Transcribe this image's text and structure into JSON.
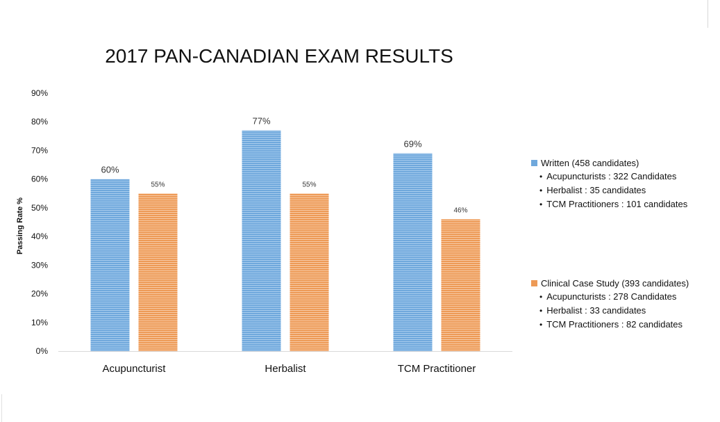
{
  "chart_data": {
    "type": "bar",
    "title": "2017 PAN-CANADIAN EXAM RESULTS",
    "ylabel": "Passing Rate %",
    "xlabel": "",
    "categories": [
      "Acupuncturist",
      "Herbalist",
      "TCM Practitioner"
    ],
    "y_ticks": [
      "0%",
      "10%",
      "20%",
      "30%",
      "40%",
      "50%",
      "60%",
      "70%",
      "80%",
      "90%"
    ],
    "ylim": [
      0,
      90
    ],
    "series": [
      {
        "name": "Written (458 candidates)",
        "values": [
          60,
          77,
          69
        ],
        "labels": [
          "60%",
          "77%",
          "69%"
        ],
        "color": "#6fa8dc",
        "stripe": "#9fc5ea"
      },
      {
        "name": "Clinical Case Study (393 candidates)",
        "values": [
          55,
          55,
          46
        ],
        "labels": [
          "55%",
          "55%",
          "46%"
        ],
        "color": "#ed9a56",
        "stripe": "#f6c69e"
      }
    ],
    "grid": false,
    "legend_position": "right"
  },
  "legend": {
    "written": {
      "title": "Written (458 candidates)",
      "items": [
        "Acupuncturists : 322 Candidates",
        "Herbalist : 35 candidates",
        "TCM Practitioners : 101 candidates"
      ]
    },
    "clinical": {
      "title": "Clinical Case Study (393 candidates)",
      "items": [
        "Acupuncturists : 278 Candidates",
        "Herbalist : 33 candidates",
        "TCM Practitioners : 82 candidates"
      ]
    }
  }
}
